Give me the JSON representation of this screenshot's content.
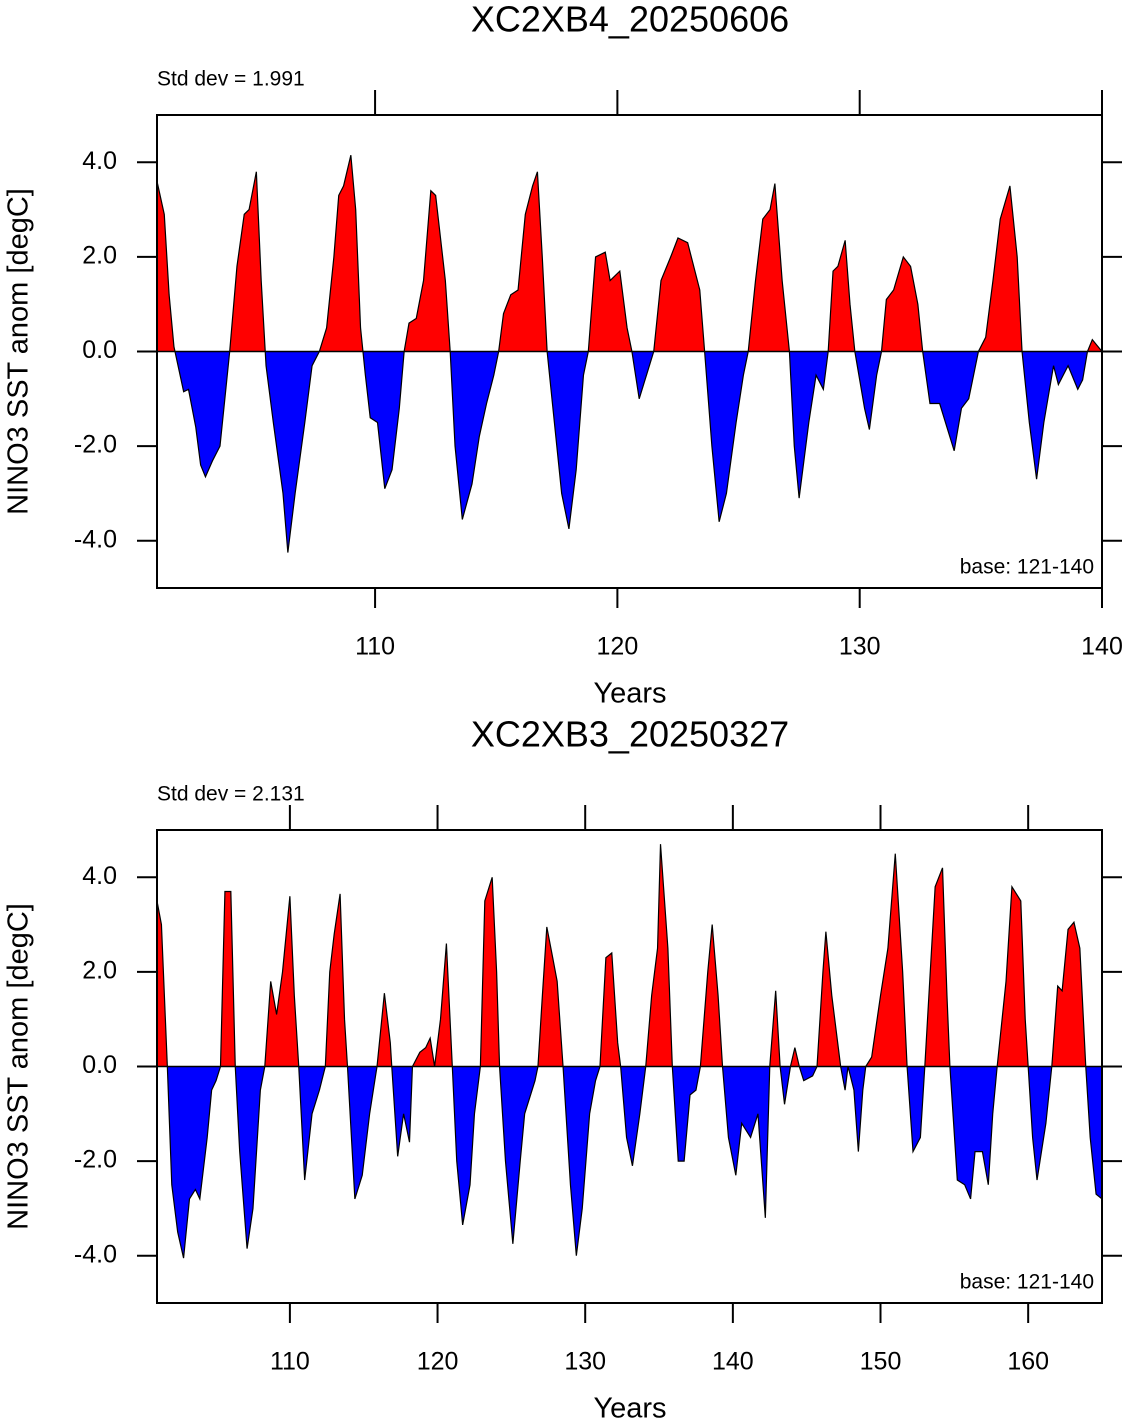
{
  "chart_data": [
    {
      "type": "area",
      "title": "XC2XB4_20250606",
      "subtitle": "Std dev = 1.991",
      "note": "base: 121-140",
      "xlabel": "Years",
      "ylabel": "NINO3 SST anom [degC]",
      "positive_color": "#ff0000",
      "negative_color": "#0000ff",
      "line_color": "#000000",
      "xlim": [
        101,
        140
      ],
      "ylim": [
        -5,
        5
      ],
      "xticks": [
        110,
        120,
        130,
        140
      ],
      "yticks": [
        {
          "value": -4,
          "label": "-4.0"
        },
        {
          "value": -2,
          "label": "-2.0"
        },
        {
          "value": 0,
          "label": "0.0"
        },
        {
          "value": 2,
          "label": "2.0"
        },
        {
          "value": 4,
          "label": "4.0"
        }
      ],
      "x": [
        101.0,
        101.3,
        101.5,
        101.7,
        102.1,
        102.3,
        102.6,
        102.8,
        103.0,
        103.3,
        103.6,
        103.8,
        104.0,
        104.3,
        104.6,
        104.8,
        105.1,
        105.3,
        105.5,
        105.8,
        106.2,
        106.4,
        106.7,
        107.1,
        107.4,
        107.7,
        108.0,
        108.3,
        108.5,
        108.7,
        109.0,
        109.2,
        109.4,
        109.6,
        109.8,
        110.1,
        110.4,
        110.7,
        111.0,
        111.2,
        111.4,
        111.7,
        112.0,
        112.3,
        112.5,
        112.9,
        113.1,
        113.3,
        113.6,
        114.0,
        114.3,
        114.6,
        114.9,
        115.1,
        115.3,
        115.6,
        115.9,
        116.2,
        116.5,
        116.7,
        116.9,
        117.1,
        117.4,
        117.7,
        118.0,
        118.3,
        118.6,
        118.8,
        119.1,
        119.5,
        119.7,
        120.1,
        120.4,
        120.6,
        120.9,
        121.2,
        121.5,
        121.8,
        122.2,
        122.5,
        122.9,
        123.4,
        123.6,
        123.9,
        124.2,
        124.5,
        124.9,
        125.2,
        125.4,
        125.7,
        126.0,
        126.3,
        126.5,
        126.8,
        127.1,
        127.3,
        127.5,
        127.9,
        128.2,
        128.5,
        128.7,
        128.9,
        129.1,
        129.4,
        129.6,
        129.8,
        130.2,
        130.4,
        130.7,
        130.9,
        131.1,
        131.4,
        131.8,
        132.1,
        132.4,
        132.6,
        132.9,
        133.3,
        133.6,
        133.9,
        134.2,
        134.5,
        134.7,
        134.9,
        135.2,
        135.5,
        135.8,
        136.2,
        136.5,
        136.7,
        137.0,
        137.3,
        137.6,
        138.0,
        138.2,
        138.6,
        139.0,
        139.2,
        139.4,
        139.6,
        140.0
      ],
      "values": [
        3.6,
        2.9,
        1.2,
        0.1,
        -0.85,
        -0.8,
        -1.6,
        -2.4,
        -2.65,
        -2.3,
        -2.0,
        -1.0,
        0.0,
        1.8,
        2.9,
        3.0,
        3.8,
        1.5,
        -0.3,
        -1.5,
        -3.0,
        -4.25,
        -3.0,
        -1.5,
        -0.3,
        0.0,
        0.5,
        2.0,
        3.3,
        3.5,
        4.15,
        3.0,
        0.5,
        -0.5,
        -1.4,
        -1.5,
        -2.9,
        -2.5,
        -1.2,
        0.0,
        0.6,
        0.7,
        1.5,
        3.4,
        3.3,
        1.5,
        0.0,
        -2.0,
        -3.55,
        -2.8,
        -1.8,
        -1.1,
        -0.5,
        0.0,
        0.8,
        1.2,
        1.3,
        2.9,
        3.5,
        3.8,
        2.0,
        0.0,
        -1.5,
        -3.0,
        -3.75,
        -2.5,
        -0.5,
        0.0,
        2.0,
        2.1,
        1.5,
        1.7,
        0.5,
        0.0,
        -1.0,
        -0.5,
        0.0,
        1.5,
        2.0,
        2.4,
        2.3,
        1.3,
        0.0,
        -2.0,
        -3.6,
        -3.0,
        -1.5,
        -0.5,
        0.0,
        1.5,
        2.8,
        3.0,
        3.55,
        1.5,
        0.0,
        -2.0,
        -3.1,
        -1.5,
        -0.5,
        -0.8,
        0.0,
        1.7,
        1.8,
        2.35,
        1.0,
        0.0,
        -1.2,
        -1.65,
        -0.5,
        0.0,
        1.1,
        1.3,
        2.0,
        1.8,
        1.0,
        0.0,
        -1.1,
        -1.1,
        -1.6,
        -2.1,
        -1.2,
        -1.0,
        -0.5,
        0.0,
        0.3,
        1.5,
        2.8,
        3.5,
        2.0,
        0.0,
        -1.5,
        -2.7,
        -1.5,
        -0.3,
        -0.7,
        -0.3,
        -0.8,
        -0.6,
        0.0,
        0.25,
        0.0
      ]
    },
    {
      "type": "area",
      "title": "XC2XB3_20250327",
      "subtitle": "Std dev = 2.131",
      "note": "base: 121-140",
      "xlabel": "Years",
      "ylabel": "NINO3 SST anom [degC]",
      "positive_color": "#ff0000",
      "negative_color": "#0000ff",
      "line_color": "#000000",
      "xlim": [
        101,
        165
      ],
      "ylim": [
        -5,
        5
      ],
      "xticks": [
        110,
        120,
        130,
        140,
        150,
        160
      ],
      "yticks": [
        {
          "value": -4,
          "label": "-4.0"
        },
        {
          "value": -2,
          "label": "-2.0"
        },
        {
          "value": 0,
          "label": "0.0"
        },
        {
          "value": 2,
          "label": "2.0"
        },
        {
          "value": 4,
          "label": "4.0"
        }
      ],
      "x": [
        101.0,
        101.3,
        101.7,
        102.0,
        102.4,
        102.8,
        103.2,
        103.6,
        103.9,
        104.4,
        104.7,
        105.0,
        105.3,
        105.6,
        106.0,
        106.3,
        106.6,
        107.1,
        107.5,
        108.0,
        108.3,
        108.7,
        109.1,
        109.5,
        110.0,
        110.3,
        110.6,
        111.0,
        111.5,
        112.0,
        112.4,
        112.7,
        113.0,
        113.4,
        113.7,
        113.9,
        114.4,
        114.9,
        115.4,
        115.8,
        115.9,
        116.4,
        116.8,
        116.9,
        117.3,
        117.7,
        118.1,
        118.3,
        118.8,
        119.2,
        119.5,
        119.8,
        120.2,
        120.6,
        121.0,
        121.3,
        121.7,
        122.2,
        122.5,
        122.9,
        123.2,
        123.7,
        124.0,
        124.2,
        124.6,
        125.1,
        125.6,
        125.9,
        126.6,
        126.8,
        127.1,
        127.4,
        127.8,
        128.1,
        128.5,
        129.0,
        129.4,
        129.8,
        130.3,
        130.7,
        131.0,
        131.4,
        131.8,
        132.2,
        132.4,
        132.8,
        133.2,
        133.7,
        134.1,
        134.5,
        134.9,
        135.1,
        135.6,
        135.9,
        136.3,
        136.7,
        137.1,
        137.5,
        137.8,
        138.3,
        138.6,
        139.0,
        139.3,
        139.7,
        140.2,
        140.6,
        141.2,
        141.7,
        142.2,
        142.5,
        142.9,
        143.2,
        143.5,
        143.9,
        144.2,
        144.5,
        144.8,
        145.4,
        145.7,
        146.1,
        146.3,
        146.7,
        147.3,
        147.6,
        147.8,
        148.2,
        148.5,
        148.8,
        149.0,
        149.4,
        150.0,
        150.5,
        151.0,
        151.5,
        151.8,
        152.2,
        152.7,
        153.0,
        153.7,
        154.2,
        154.5,
        154.7,
        155.2,
        155.7,
        156.1,
        156.4,
        156.9,
        157.3,
        157.6,
        157.9,
        158.5,
        158.9,
        159.5,
        159.8,
        160.0,
        160.3,
        160.6,
        161.2,
        161.6,
        162.0,
        162.3,
        162.7,
        163.1,
        163.5,
        163.9,
        164.2,
        164.6,
        165.0
      ],
      "values": [
        3.5,
        3.0,
        0.0,
        -2.5,
        -3.5,
        -4.05,
        -2.8,
        -2.6,
        -2.8,
        -1.5,
        -0.5,
        -0.3,
        0.0,
        3.7,
        3.7,
        0.0,
        -1.8,
        -3.85,
        -3.0,
        -0.5,
        0.0,
        1.8,
        1.1,
        2.0,
        3.6,
        1.5,
        0.0,
        -2.4,
        -1.0,
        -0.5,
        0.0,
        2.0,
        2.8,
        3.65,
        1.0,
        0.0,
        -2.8,
        -2.3,
        -1.0,
        -0.2,
        0.0,
        1.55,
        0.5,
        0.0,
        -1.9,
        -1.0,
        -1.6,
        0.0,
        0.3,
        0.4,
        0.6,
        0.0,
        1.0,
        2.6,
        0.0,
        -2.0,
        -3.35,
        -2.5,
        -1.0,
        0.0,
        3.5,
        4.0,
        2.0,
        0.0,
        -2.0,
        -3.75,
        -2.0,
        -1.0,
        -0.3,
        0.0,
        1.5,
        2.95,
        2.3,
        1.8,
        0.0,
        -2.5,
        -4.0,
        -3.0,
        -1.0,
        -0.3,
        0.0,
        2.3,
        2.4,
        0.5,
        0.0,
        -1.5,
        -2.1,
        -1.0,
        0.0,
        1.5,
        2.5,
        4.7,
        2.5,
        0.0,
        -2.0,
        -2.0,
        -0.6,
        -0.5,
        0.0,
        2.0,
        3.0,
        1.5,
        0.0,
        -1.5,
        -2.3,
        -1.2,
        -1.5,
        -1.0,
        -3.2,
        0.0,
        1.6,
        0.0,
        -0.8,
        0.0,
        0.4,
        0.0,
        -0.3,
        -0.2,
        0.0,
        2.0,
        2.85,
        1.5,
        0.0,
        -0.5,
        0.0,
        -0.5,
        -1.8,
        -0.5,
        0.0,
        0.2,
        1.5,
        2.5,
        4.5,
        2.0,
        0.0,
        -1.8,
        -1.5,
        0.0,
        3.8,
        4.2,
        1.5,
        0.0,
        -2.4,
        -2.5,
        -2.8,
        -1.8,
        -1.8,
        -2.5,
        -1.0,
        0.0,
        1.8,
        3.8,
        3.5,
        1.0,
        0.0,
        -1.5,
        -2.4,
        -1.2,
        0.0,
        1.7,
        1.6,
        2.9,
        3.05,
        2.5,
        0.0,
        -1.5,
        -2.7,
        -2.8
      ]
    }
  ]
}
